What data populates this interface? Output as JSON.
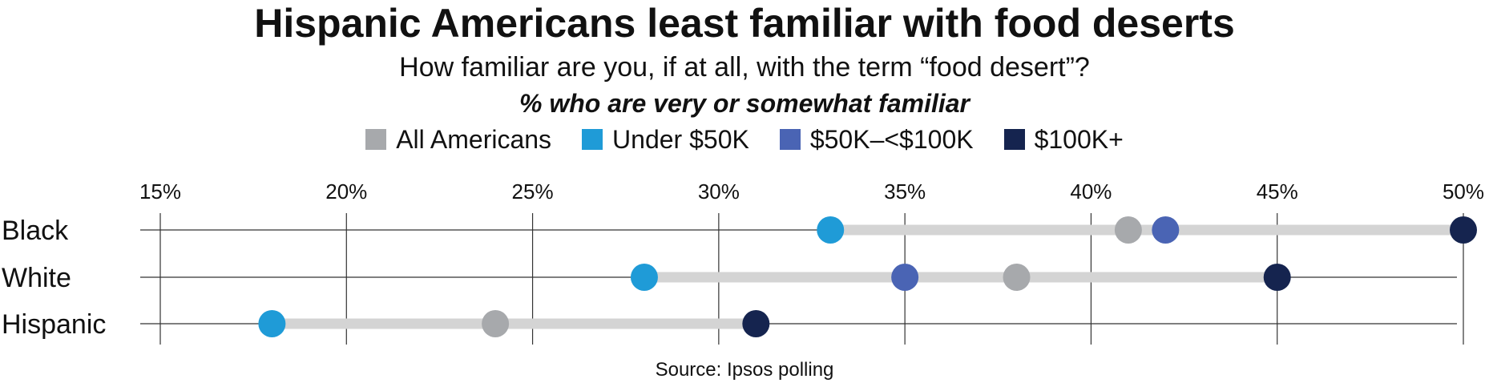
{
  "chart_data": {
    "type": "dot-plot",
    "title": "Hispanic Americans least familiar with food deserts",
    "subtitle": "How familiar are you, if at all, with the term “food desert”?",
    "note": "% who are very or somewhat familiar",
    "source": "Source: Ipsos polling",
    "categories": [
      "Black",
      "White",
      "Hispanic"
    ],
    "xlim": [
      15,
      50
    ],
    "ticks": [
      15,
      20,
      25,
      30,
      35,
      40,
      45,
      50
    ],
    "tick_labels": [
      "15%",
      "20%",
      "25%",
      "30%",
      "35%",
      "40%",
      "45%",
      "50%"
    ],
    "xlabel": "",
    "ylabel": "",
    "grid": true,
    "legend_position": "top-center",
    "series": [
      {
        "name": "All Americans",
        "color": "#a7a9ac",
        "values": [
          41,
          38,
          24
        ]
      },
      {
        "name": "Under $50K",
        "color": "#1f9bd7",
        "values": [
          33,
          28,
          18
        ]
      },
      {
        "name": "$50K–<$100K",
        "color": "#4a64b4",
        "values": [
          42,
          35,
          null
        ]
      },
      {
        "name": "$100K+",
        "color": "#15244f",
        "values": [
          50,
          45,
          31
        ]
      }
    ],
    "range_bar_color": "#d4d4d4"
  }
}
